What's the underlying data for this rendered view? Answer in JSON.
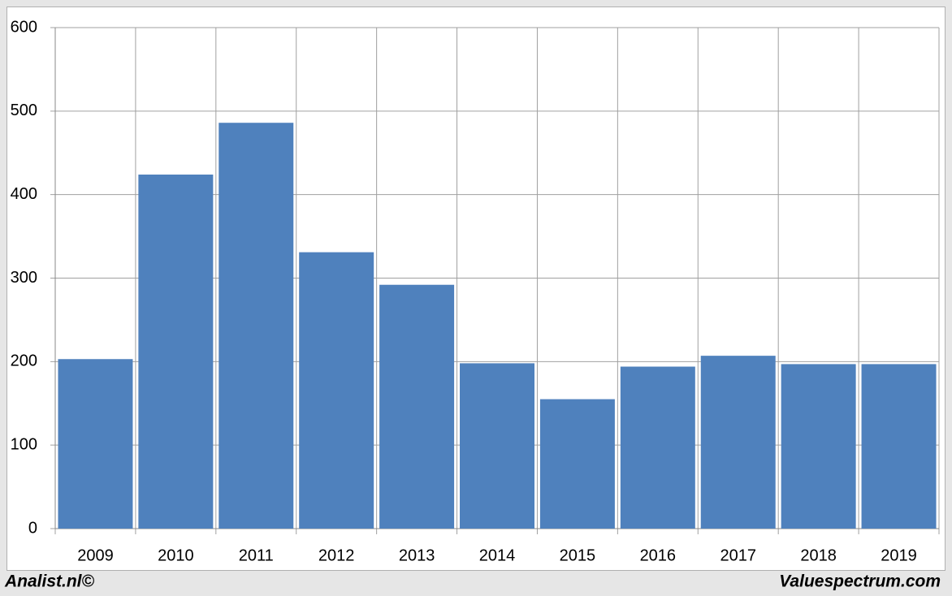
{
  "chart_data": {
    "type": "bar",
    "categories": [
      "2009",
      "2010",
      "2011",
      "2012",
      "2013",
      "2014",
      "2015",
      "2016",
      "2017",
      "2018",
      "2019"
    ],
    "values": [
      203,
      424,
      486,
      331,
      292,
      198,
      155,
      194,
      207,
      197,
      197
    ],
    "color": "#4f81bd",
    "ylim": [
      0,
      600
    ],
    "yticks": [
      0,
      100,
      200,
      300,
      400,
      500,
      600
    ],
    "grid": true,
    "source_left": "Analist.nl©",
    "source_right": "Valuespectrum.com"
  }
}
